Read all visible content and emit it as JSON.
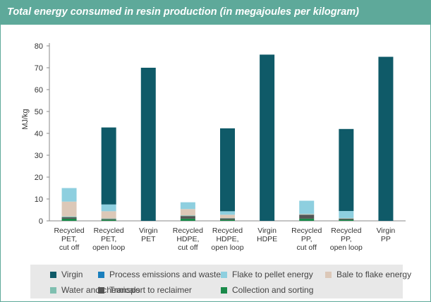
{
  "title": "Total energy consumed in resin production (in megajoules per kilogram)",
  "chart_data": {
    "type": "bar",
    "stacked": true,
    "ylabel": "MJ/kg",
    "ylim": [
      0,
      80
    ],
    "yticks": [
      0,
      10,
      20,
      30,
      40,
      50,
      60,
      70,
      80
    ],
    "categories": [
      [
        "Recycled",
        "PET,",
        "cut off"
      ],
      [
        "Recycled",
        "PET,",
        "open loop"
      ],
      [
        "Virgin",
        "PET"
      ],
      [
        "Recycled",
        "HDPE,",
        "cut off"
      ],
      [
        "Recycled",
        "HDPE,",
        "open loop"
      ],
      [
        "Virgin",
        "HDPE"
      ],
      [
        "Recycled",
        "PP,",
        "cut off"
      ],
      [
        "Recycled",
        "PP,",
        "open loop"
      ],
      [
        "Virgin",
        "PP"
      ]
    ],
    "series": [
      {
        "name": "Collection and sorting",
        "color": "#1a8a4a",
        "values": [
          1.0,
          0.5,
          0,
          1.0,
          0.5,
          0,
          1.0,
          0.5,
          0
        ]
      },
      {
        "name": "Transport to reclaimer",
        "color": "#555555",
        "values": [
          0.6,
          0.3,
          0,
          1.2,
          0.6,
          0,
          1.8,
          0.5,
          0
        ]
      },
      {
        "name": "Water and chemicals",
        "color": "#7fbfb0",
        "values": [
          0.4,
          0.3,
          0,
          0.3,
          0.2,
          0,
          0.2,
          0.2,
          0
        ]
      },
      {
        "name": "Bale to flake energy",
        "color": "#dcc8b8",
        "values": [
          6.8,
          3.3,
          0,
          2.9,
          1.5,
          0,
          0.2,
          0.1,
          0
        ]
      },
      {
        "name": "Flake to pellet energy",
        "color": "#8ecfdf",
        "values": [
          6.2,
          3.1,
          0,
          3.1,
          1.6,
          0,
          6.0,
          3.2,
          0
        ]
      },
      {
        "name": "Process emissions and wastes",
        "color": "#1a7fbd",
        "values": [
          0,
          0,
          0,
          0,
          0,
          0,
          0,
          0,
          0
        ]
      },
      {
        "name": "Virgin",
        "color": "#0f5a68",
        "values": [
          0,
          35.2,
          70,
          0,
          37.9,
          76,
          0,
          37.5,
          75
        ]
      }
    ],
    "legend": {
      "placement": "bottom",
      "rows": [
        [
          "Virgin",
          "Process emissions and wastes",
          "Flake to pellet energy",
          "Bale to flake energy"
        ],
        [
          "Water and chemicals",
          "Transport to reclaimer",
          "Collection and sorting"
        ]
      ]
    },
    "grid": false
  }
}
